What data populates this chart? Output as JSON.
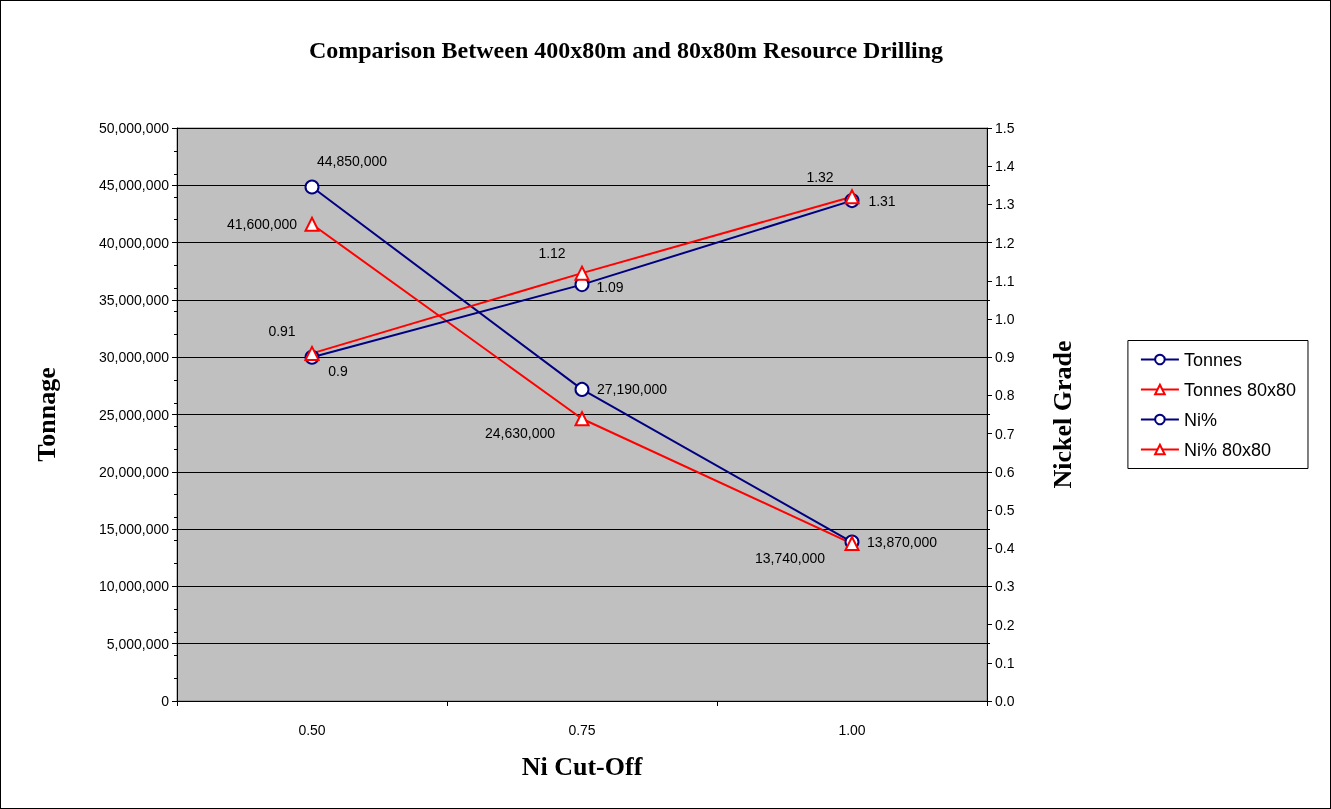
{
  "chart_data": {
    "type": "line",
    "title": "Comparison Between 400x80m and 80x80m Resource Drilling",
    "xlabel": "Ni Cut-Off",
    "ylabel": "Tonnage",
    "y2label": "Nickel Grade",
    "categories": [
      "0.50",
      "0.75",
      "1.00"
    ],
    "series": [
      {
        "name": "Tonnes",
        "color": "#000080",
        "marker": "circle",
        "values": [
          44850000,
          27190000,
          13870000
        ],
        "value_labels": [
          "44,850,000",
          "27,190,000",
          "13,870,000"
        ]
      },
      {
        "name": "Tonnes 80x80",
        "color": "#ff0000",
        "marker": "triangle",
        "values": [
          41600000,
          24630000,
          13740000
        ],
        "value_labels": [
          "41,600,000",
          "24,630,000",
          "13,740,000"
        ]
      },
      {
        "name": "Ni%",
        "color": "#000080",
        "marker": "circle",
        "axis": "y2",
        "values": [
          0.9,
          1.09,
          1.31
        ],
        "value_labels": [
          "0.9",
          "1.09",
          "1.31"
        ]
      },
      {
        "name": "Ni% 80x80",
        "color": "#ff0000",
        "marker": "triangle",
        "axis": "y2",
        "values": [
          0.91,
          1.12,
          1.32
        ],
        "value_labels": [
          "0.91",
          "1.12",
          "1.32"
        ]
      }
    ],
    "ylim": [
      0,
      50000000
    ],
    "yticks": [
      0,
      {
        "value": 5000000,
        "label": "5,000,000"
      },
      {
        "value": 10000000,
        "label": "10,000,000"
      },
      {
        "value": 15000000,
        "label": "15,000,000"
      },
      {
        "value": 20000000,
        "label": "20,000,000"
      },
      {
        "value": 25000000,
        "label": "25,000,000"
      },
      {
        "value": 30000000,
        "label": "30,000,000"
      },
      {
        "value": 35000000,
        "label": "35,000,000"
      },
      {
        "value": 40000000,
        "label": "40,000,000"
      },
      {
        "value": 45000000,
        "label": "45,000,000"
      },
      {
        "value": 50000000,
        "label": "50,000,000"
      }
    ],
    "y2lim": [
      0,
      1.5
    ],
    "y2ticks": [
      {
        "value": 0,
        "label": "0.0"
      },
      0.1,
      0.2,
      0.3,
      0.4,
      0.5,
      0.6,
      0.7,
      0.8,
      0.9,
      {
        "value": 1,
        "label": "1.0"
      },
      1.1,
      1.2,
      1.3,
      1.4,
      1.5
    ],
    "grid": "y",
    "legend": "right",
    "line_style": "solid"
  }
}
